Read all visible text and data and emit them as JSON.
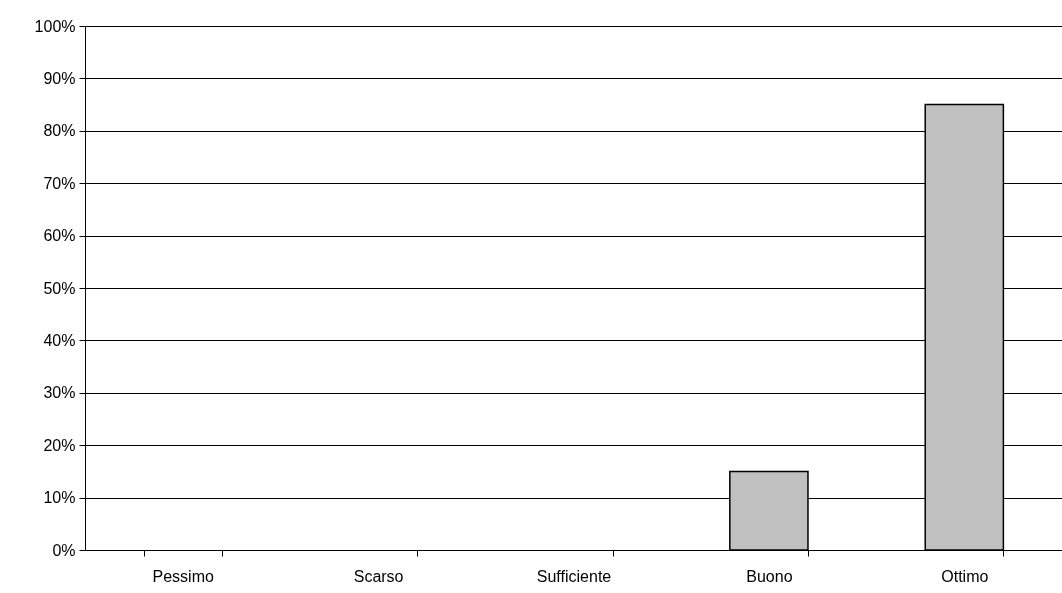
{
  "chart_data": {
    "type": "bar",
    "categories": [
      "Pessimo",
      "Scarso",
      "Sufficiente",
      "Buono",
      "Ottimo"
    ],
    "values": [
      0,
      0,
      0,
      15,
      85
    ],
    "color": "#c0c0c0",
    "ylim": [
      0,
      100
    ],
    "yticks": [
      {
        "value": 0,
        "label": "0%"
      },
      {
        "value": 10,
        "label": "10%"
      },
      {
        "value": 20,
        "label": "20%"
      },
      {
        "value": 30,
        "label": "30%"
      },
      {
        "value": 40,
        "label": "40%"
      },
      {
        "value": 50,
        "label": "50%"
      },
      {
        "value": 60,
        "label": "60%"
      },
      {
        "value": 70,
        "label": "70%"
      },
      {
        "value": 80,
        "label": "80%"
      },
      {
        "value": 90,
        "label": "90%"
      },
      {
        "value": 100,
        "label": "100%"
      }
    ],
    "grid": "y",
    "legend": false
  }
}
